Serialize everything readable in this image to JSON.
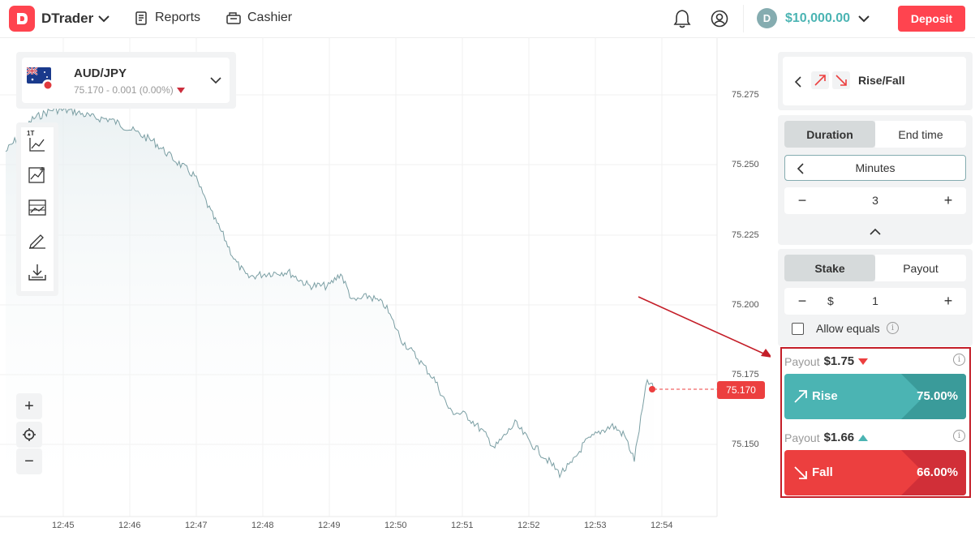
{
  "header": {
    "app_name": "DTrader",
    "reports_label": "Reports",
    "cashier_label": "Cashier",
    "balance": "$10,000.00",
    "deposit_label": "Deposit",
    "colors": {
      "brand": "#ff444f",
      "balance": "#4bb4b3"
    }
  },
  "asset": {
    "name": "AUD/JPY",
    "price_line": "75.170 - 0.001 (0.00%)",
    "direction": "down"
  },
  "toolbar": {
    "tick_label": "1T",
    "icons": [
      "chart-type-icon",
      "indicators-icon",
      "templates-icon",
      "drawing-tools-icon",
      "download-icon"
    ]
  },
  "zoom": {
    "in_label": "+",
    "out_label": "−"
  },
  "chart": {
    "current_price": "75.170",
    "y_ticks": [
      "75.275",
      "75.250",
      "75.225",
      "75.200",
      "75.175",
      "75.150"
    ],
    "x_ticks": [
      "12:45",
      "12:46",
      "12:47",
      "12:48",
      "12:49",
      "12:50",
      "12:51",
      "12:52",
      "12:53",
      "12:54"
    ]
  },
  "trade": {
    "contract_type": "Rise/Fall",
    "duration_tab": "Duration",
    "end_time_tab": "End time",
    "unit": "Minutes",
    "duration_value": "3",
    "stake_tab": "Stake",
    "payout_tab": "Payout",
    "currency": "$",
    "stake_value": "1",
    "allow_equals": "Allow equals",
    "rise": {
      "payout_label": "Payout",
      "payout_value": "$1.75",
      "button": "Rise",
      "percent": "75.00%"
    },
    "fall": {
      "payout_label": "Payout",
      "payout_value": "$1.66",
      "button": "Fall",
      "percent": "66.00%"
    },
    "colors": {
      "rise": "#4bb4b3",
      "rise_dark": "#3a9b9a",
      "fall": "#ec3f3f",
      "fall_dark": "#d12f38"
    }
  }
}
